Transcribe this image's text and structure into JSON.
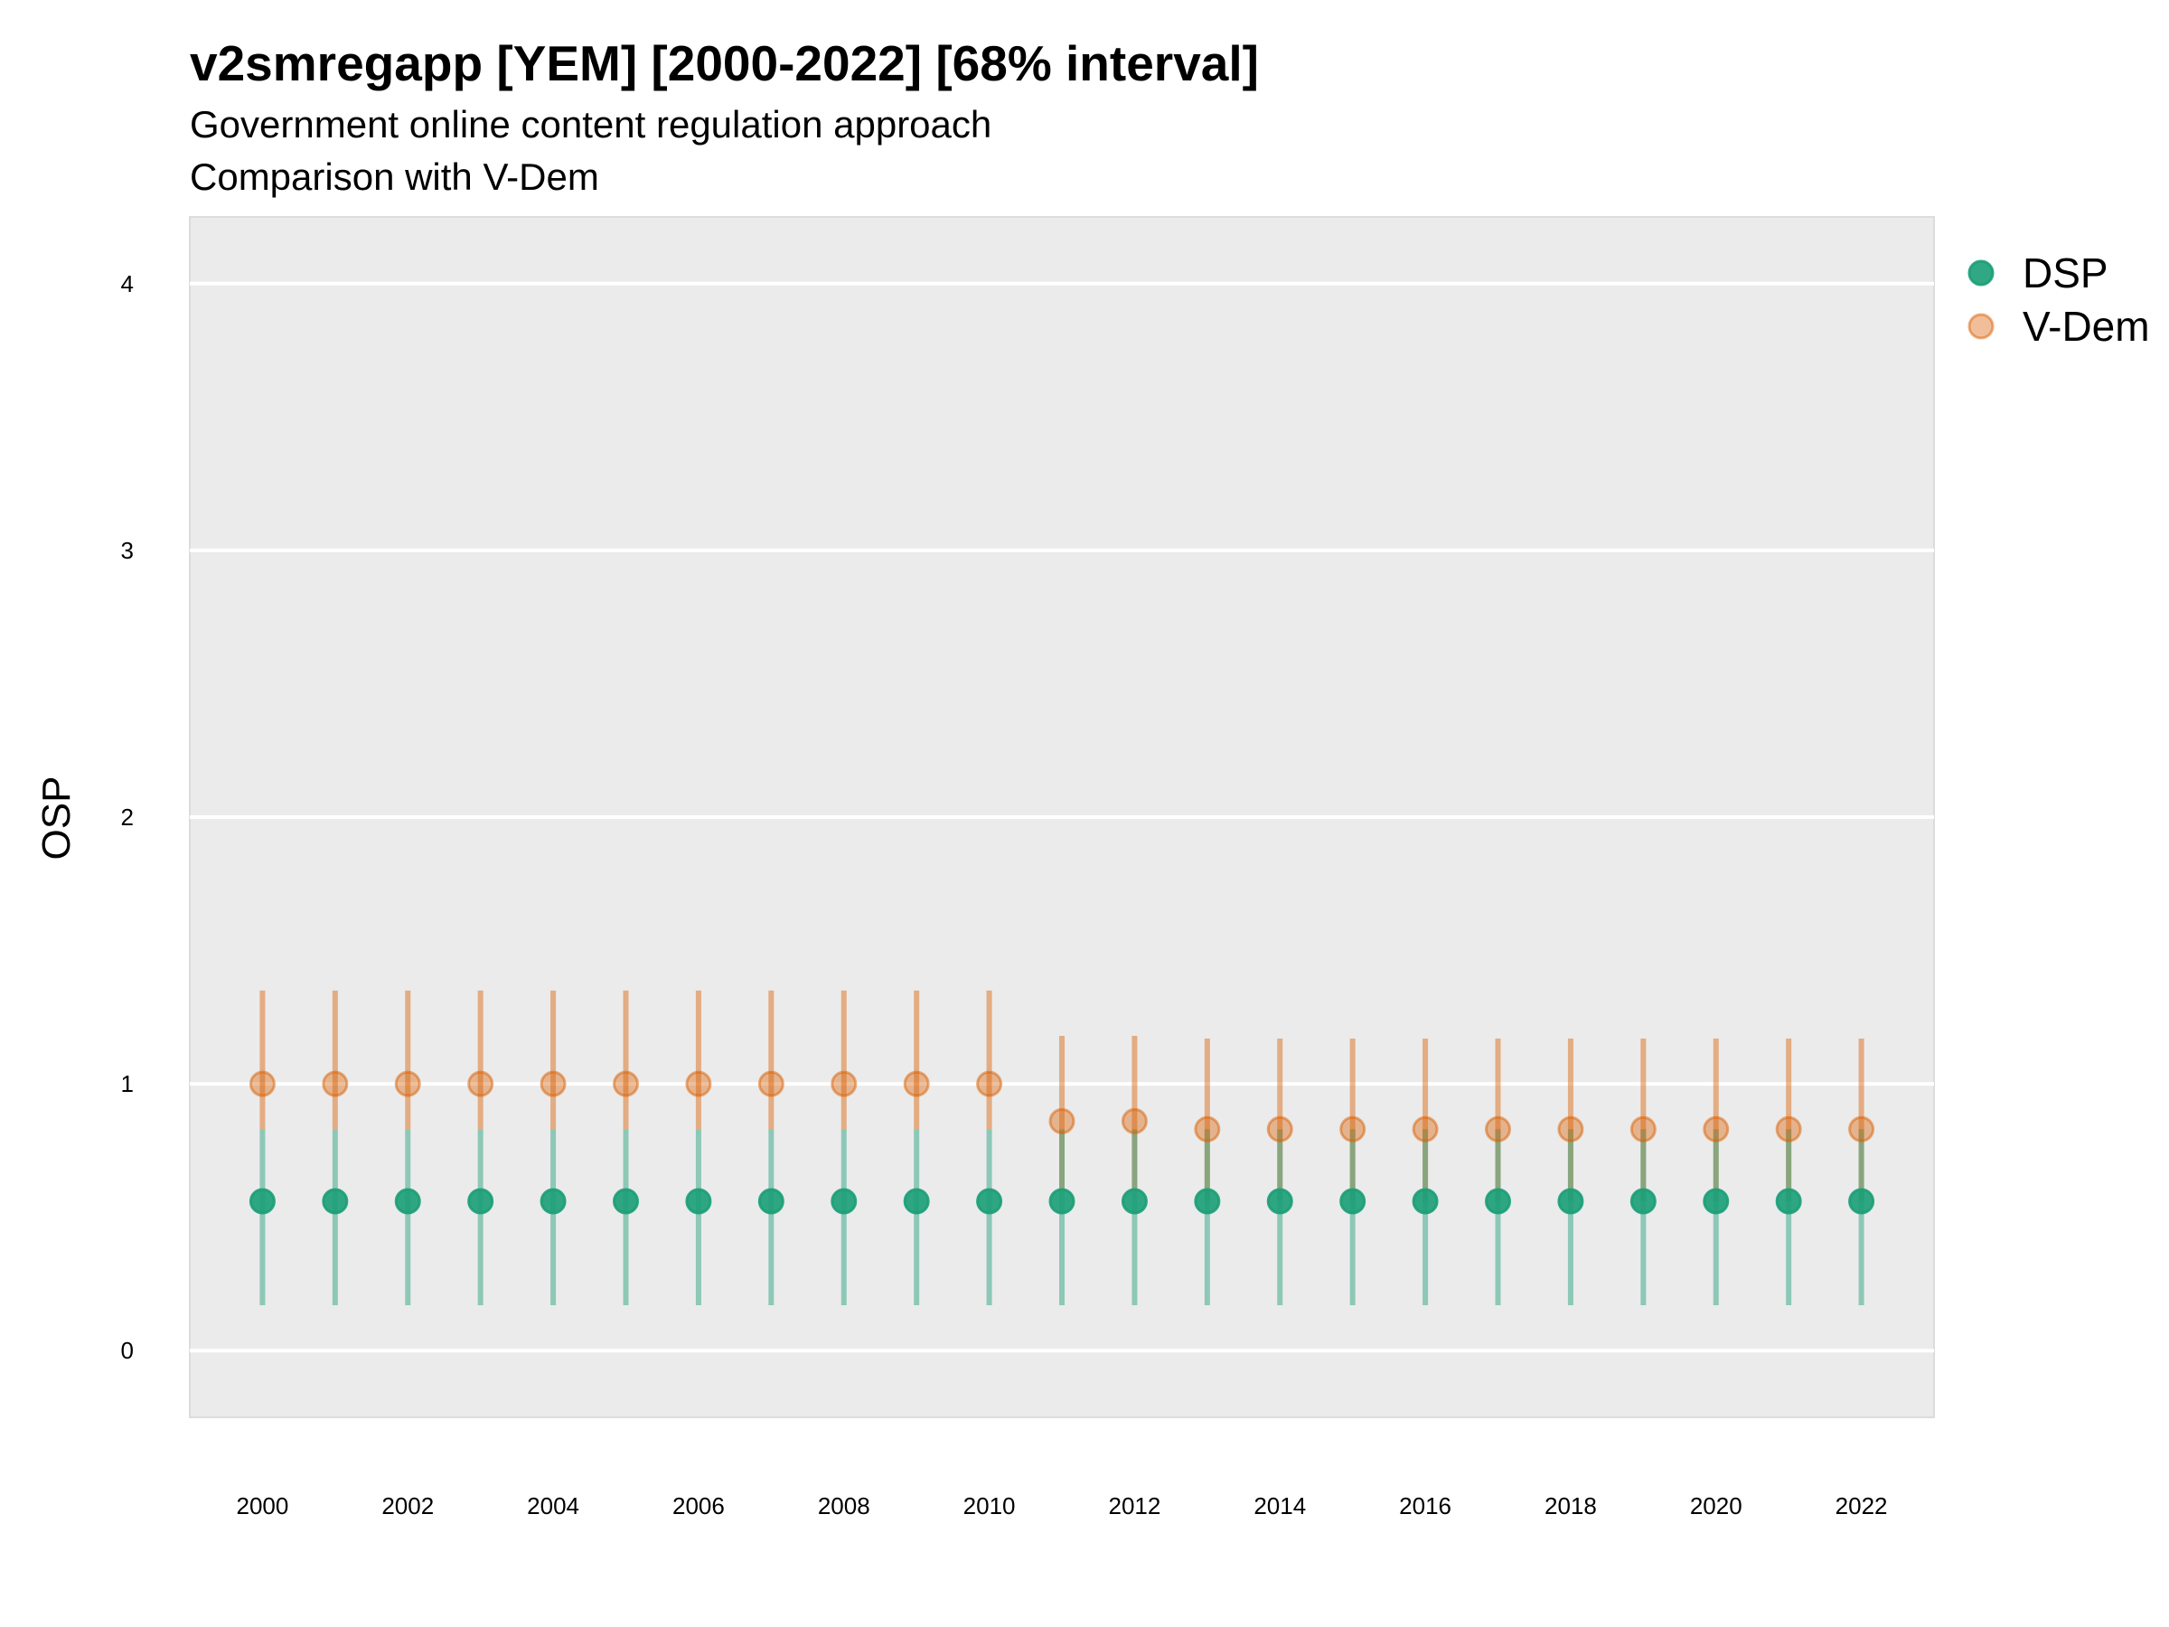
{
  "title": "v2smregapp [YEM] [2000-2022] [68% interval]",
  "subtitle": "Government online content regulation approach",
  "subtitle2": "Comparison with V-Dem",
  "chart_data": {
    "type": "scatter",
    "title": "v2smregapp [YEM] [2000-2022] [68% interval]",
    "subtitle": "Government online content regulation approach",
    "subtitle2": "Comparison with V-Dem",
    "xlabel": "",
    "ylabel": "OSP",
    "xlim": [
      1999,
      2023
    ],
    "ylim": [
      -0.25,
      4.25
    ],
    "x_ticks": [
      2000,
      2002,
      2004,
      2006,
      2008,
      2010,
      2012,
      2014,
      2016,
      2018,
      2020,
      2022
    ],
    "y_ticks": [
      0,
      1,
      2,
      3,
      4
    ],
    "grid": true,
    "legend_position": "right",
    "series": [
      {
        "name": "DSP",
        "color": "#1b9e77",
        "x": [
          2000,
          2001,
          2002,
          2003,
          2004,
          2005,
          2006,
          2007,
          2008,
          2009,
          2010,
          2011,
          2012,
          2013,
          2014,
          2015,
          2016,
          2017,
          2018,
          2019,
          2020,
          2021,
          2022
        ],
        "y": [
          0.56,
          0.56,
          0.56,
          0.56,
          0.56,
          0.56,
          0.56,
          0.56,
          0.56,
          0.56,
          0.56,
          0.56,
          0.56,
          0.56,
          0.56,
          0.56,
          0.56,
          0.56,
          0.56,
          0.56,
          0.56,
          0.56,
          0.56
        ],
        "lower": [
          0.17,
          0.17,
          0.17,
          0.17,
          0.17,
          0.17,
          0.17,
          0.17,
          0.17,
          0.17,
          0.17,
          0.17,
          0.17,
          0.17,
          0.17,
          0.17,
          0.17,
          0.17,
          0.17,
          0.17,
          0.17,
          0.17,
          0.17
        ],
        "upper": [
          0.83,
          0.83,
          0.83,
          0.83,
          0.83,
          0.83,
          0.83,
          0.83,
          0.83,
          0.83,
          0.83,
          0.83,
          0.83,
          0.83,
          0.83,
          0.83,
          0.83,
          0.83,
          0.83,
          0.83,
          0.83,
          0.83,
          0.83
        ]
      },
      {
        "name": "V-Dem",
        "color": "#d95f02",
        "x": [
          2000,
          2001,
          2002,
          2003,
          2004,
          2005,
          2006,
          2007,
          2008,
          2009,
          2010,
          2011,
          2012,
          2013,
          2014,
          2015,
          2016,
          2017,
          2018,
          2019,
          2020,
          2021,
          2022
        ],
        "y": [
          1.0,
          1.0,
          1.0,
          1.0,
          1.0,
          1.0,
          1.0,
          1.0,
          1.0,
          1.0,
          1.0,
          0.86,
          0.86,
          0.83,
          0.83,
          0.83,
          0.83,
          0.83,
          0.83,
          0.83,
          0.83,
          0.83,
          0.83
        ],
        "lower": [
          0.83,
          0.83,
          0.83,
          0.83,
          0.83,
          0.83,
          0.83,
          0.83,
          0.83,
          0.83,
          0.83,
          0.6,
          0.6,
          0.56,
          0.56,
          0.56,
          0.56,
          0.56,
          0.56,
          0.56,
          0.56,
          0.56,
          0.56
        ],
        "upper": [
          1.35,
          1.35,
          1.35,
          1.35,
          1.35,
          1.35,
          1.35,
          1.35,
          1.35,
          1.35,
          1.35,
          1.18,
          1.18,
          1.17,
          1.17,
          1.17,
          1.17,
          1.17,
          1.17,
          1.17,
          1.17,
          1.17,
          1.17
        ]
      }
    ]
  }
}
